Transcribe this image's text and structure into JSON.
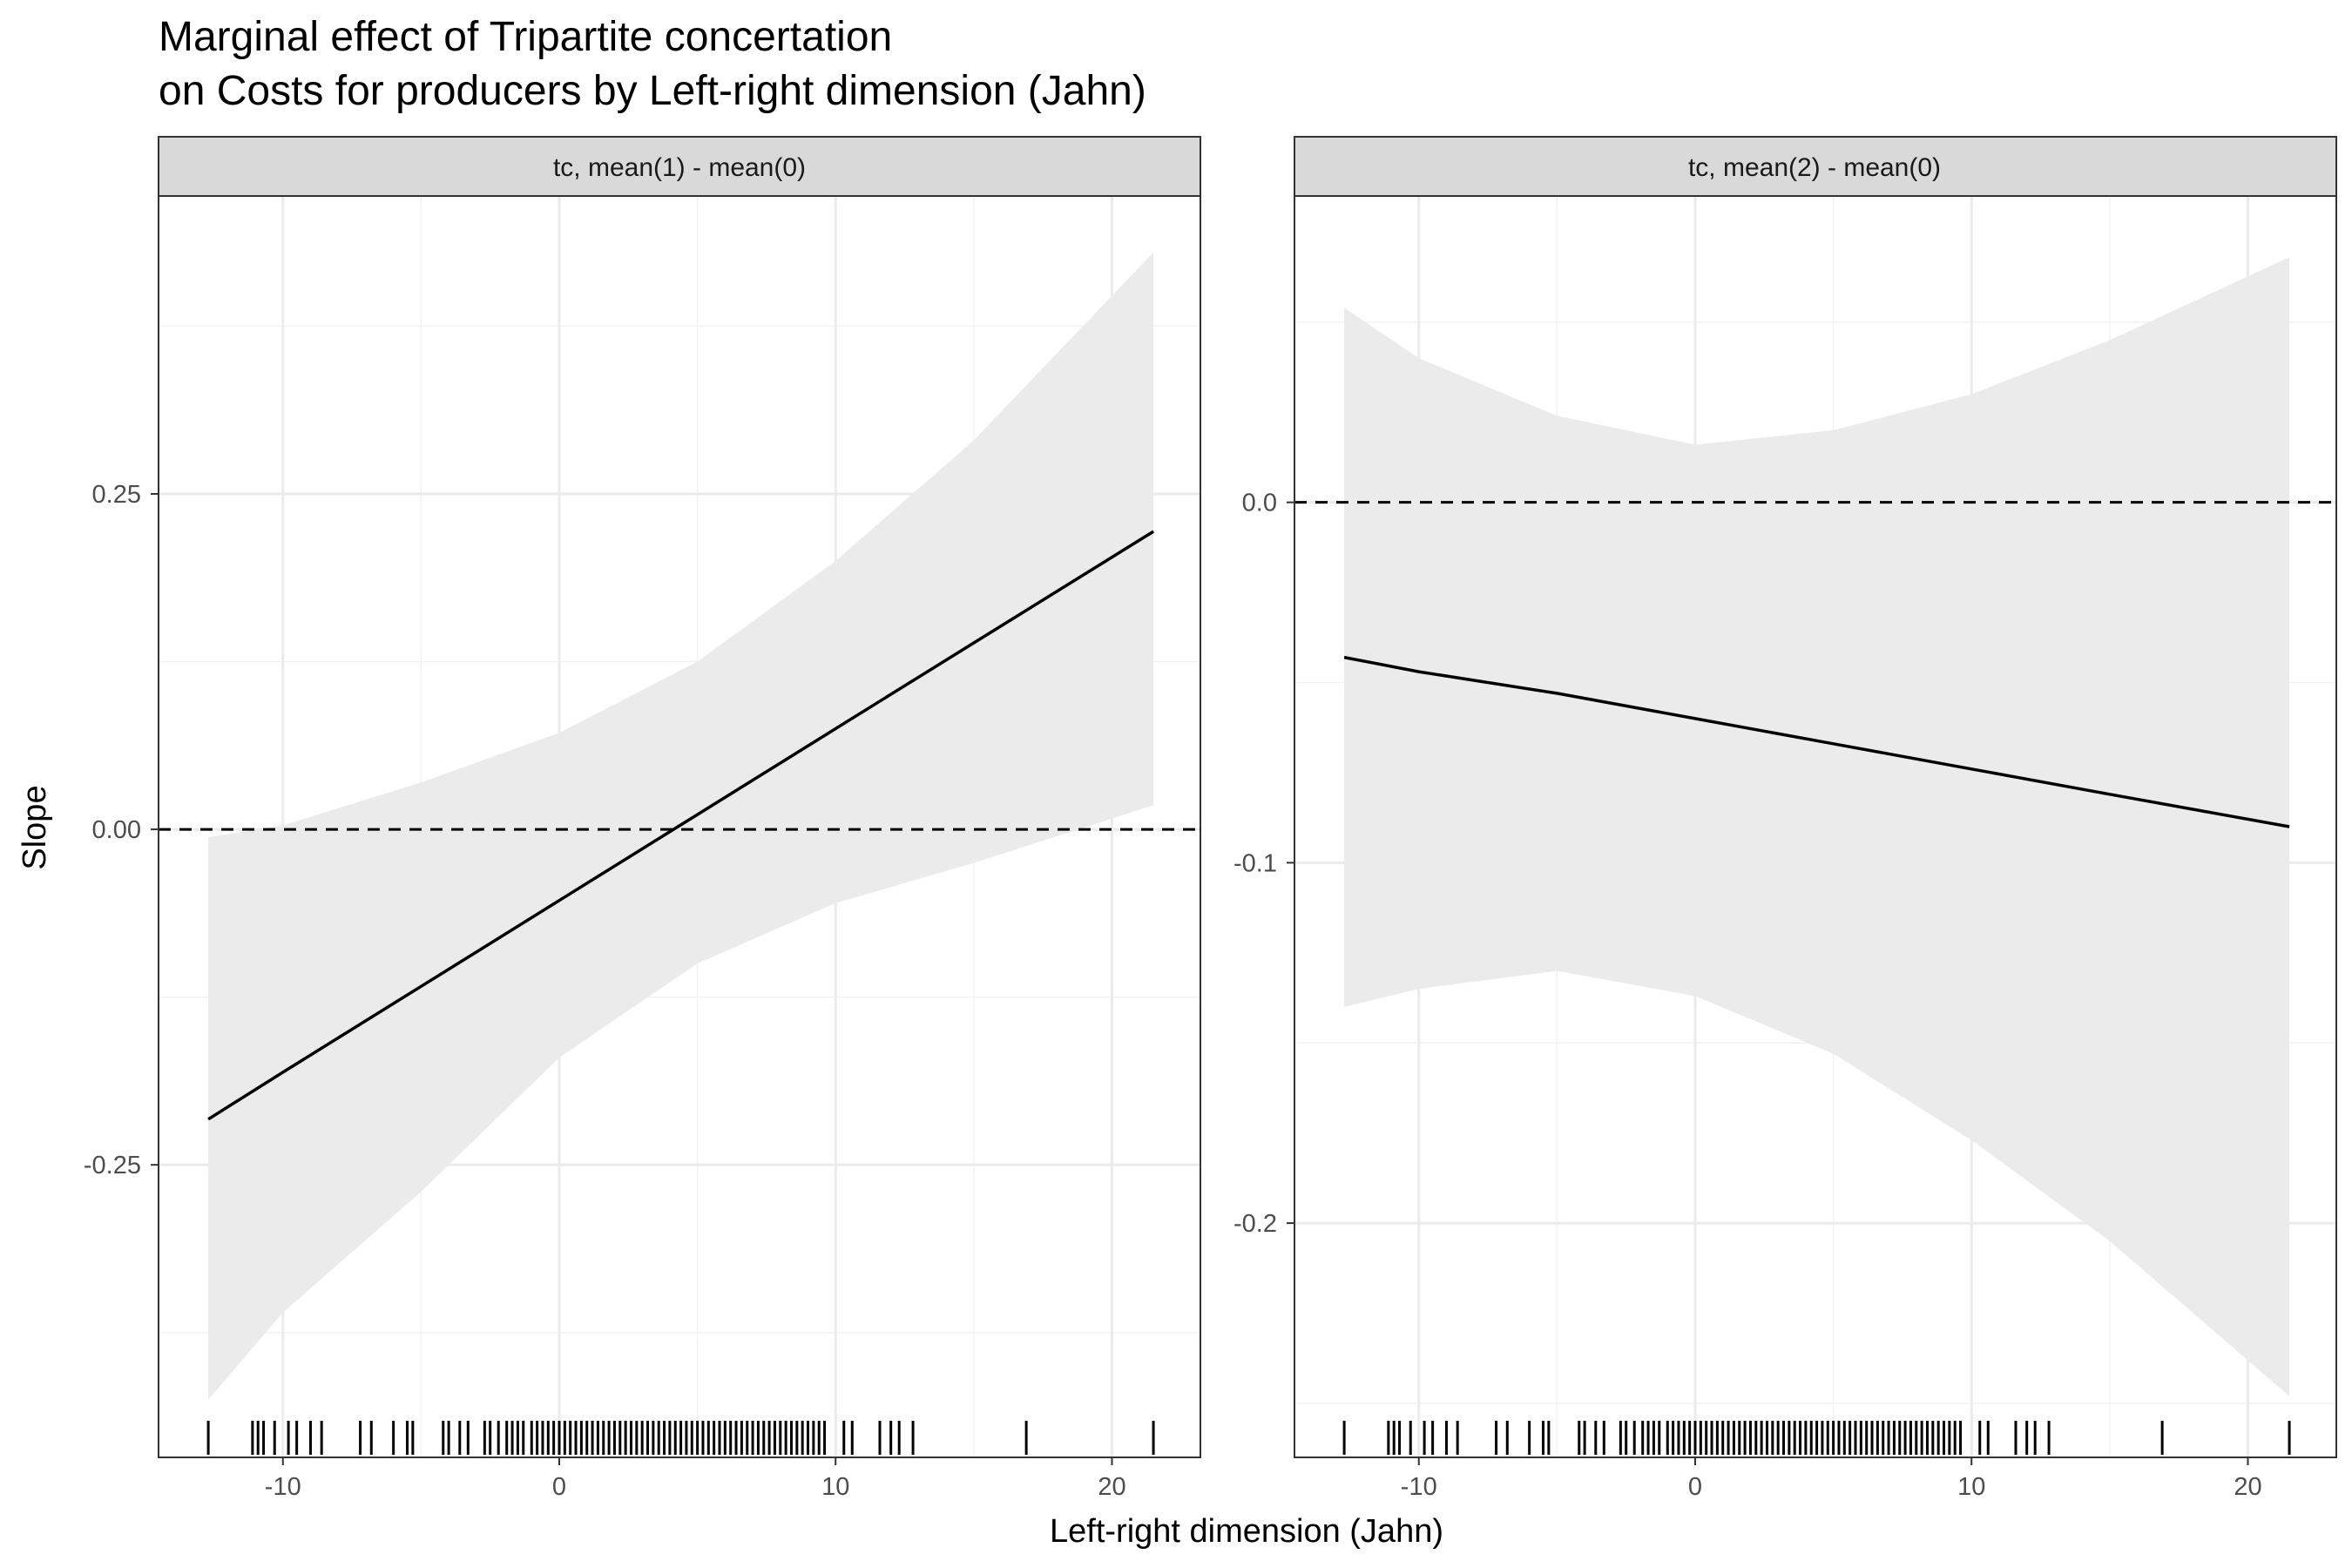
{
  "title_line1": "Marginal effect of Tripartite concertation",
  "title_line2": "on Costs for producers by Left-right dimension (Jahn)",
  "xlabel": "Left-right dimension (Jahn)",
  "ylabel": "Slope",
  "colors": {
    "ribbon": "#ebebeb",
    "line": "#000000",
    "grid_major": "#ebebeb",
    "grid_minor": "#f2f2f2",
    "strip_bg": "#d9d9d9",
    "strip_border": "#333333",
    "panel_border": "#333333"
  },
  "chart_data": [
    {
      "type": "line",
      "panel_label": "tc, mean(1) - mean(0)",
      "x_ticks": [
        -10,
        0,
        10,
        20
      ],
      "x_tick_labels": [
        "-10",
        "0",
        "10",
        "20"
      ],
      "xlim": [
        -14.5,
        23.2
      ],
      "y_ticks": [
        0.25,
        0.0,
        -0.25
      ],
      "y_tick_labels": [
        "0.25",
        "0.00",
        "-0.25"
      ],
      "ylim": [
        -0.468,
        0.472
      ],
      "reference_line": 0,
      "series": [
        {
          "x": [
            -12.7,
            -10,
            -5,
            0,
            5,
            10,
            15,
            21.5
          ],
          "y": [
            -0.216,
            -0.181,
            -0.117,
            -0.053,
            0.011,
            0.075,
            0.139,
            0.222
          ],
          "ci_lower": [
            -0.425,
            -0.36,
            -0.27,
            -0.17,
            -0.1,
            -0.055,
            -0.025,
            0.018
          ],
          "ci_upper": [
            -0.006,
            0.003,
            0.035,
            0.072,
            0.125,
            0.2,
            0.29,
            0.43
          ]
        }
      ],
      "rug_x": [
        -12.7,
        -11.1,
        -10.9,
        -10.7,
        -10.3,
        -9.8,
        -9.5,
        -9.0,
        -8.6,
        -7.2,
        -6.8,
        -6.0,
        -5.5,
        -5.3,
        -4.2,
        -4.0,
        -3.6,
        -3.3,
        -2.7,
        -2.5,
        -2.2,
        -1.9,
        -1.7,
        -1.5,
        -1.3,
        -1.0,
        -0.8,
        -0.6,
        -0.4,
        -0.2,
        0.0,
        0.2,
        0.4,
        0.6,
        0.8,
        1.0,
        1.2,
        1.4,
        1.6,
        1.8,
        2.0,
        2.2,
        2.4,
        2.6,
        2.8,
        3.0,
        3.2,
        3.4,
        3.6,
        3.8,
        4.0,
        4.2,
        4.4,
        4.6,
        4.8,
        5.0,
        5.2,
        5.4,
        5.6,
        5.8,
        6.0,
        6.2,
        6.4,
        6.6,
        6.8,
        7.0,
        7.2,
        7.4,
        7.6,
        7.8,
        8.0,
        8.2,
        8.4,
        8.6,
        8.8,
        9.0,
        9.2,
        9.4,
        9.6,
        10.3,
        10.6,
        11.6,
        12.0,
        12.3,
        12.8,
        16.9,
        21.5
      ]
    },
    {
      "type": "line",
      "panel_label": "tc, mean(2) - mean(0)",
      "x_ticks": [
        -10,
        0,
        10,
        20
      ],
      "x_tick_labels": [
        "-10",
        "0",
        "10",
        "20"
      ],
      "xlim": [
        -14.5,
        23.2
      ],
      "y_ticks": [
        0.0,
        -0.1,
        -0.2
      ],
      "y_tick_labels": [
        "0.0",
        "-0.1",
        "-0.2"
      ],
      "ylim": [
        -0.265,
        0.085
      ],
      "reference_line": 0,
      "series": [
        {
          "x": [
            -12.7,
            -10,
            -5,
            0,
            5,
            10,
            15,
            21.5
          ],
          "y": [
            -0.043,
            -0.047,
            -0.053,
            -0.06,
            -0.067,
            -0.074,
            -0.081,
            -0.09
          ],
          "ci_lower": [
            -0.14,
            -0.135,
            -0.13,
            -0.137,
            -0.153,
            -0.177,
            -0.205,
            -0.248
          ],
          "ci_upper": [
            0.054,
            0.04,
            0.024,
            0.016,
            0.02,
            0.03,
            0.045,
            0.068
          ]
        }
      ],
      "rug_x": [
        -12.7,
        -11.1,
        -10.9,
        -10.7,
        -10.3,
        -9.8,
        -9.5,
        -9.0,
        -8.6,
        -7.2,
        -6.8,
        -6.0,
        -5.5,
        -5.3,
        -4.2,
        -4.0,
        -3.6,
        -3.3,
        -2.7,
        -2.5,
        -2.2,
        -1.9,
        -1.7,
        -1.5,
        -1.3,
        -1.0,
        -0.8,
        -0.6,
        -0.4,
        -0.2,
        0.0,
        0.2,
        0.4,
        0.6,
        0.8,
        1.0,
        1.2,
        1.4,
        1.6,
        1.8,
        2.0,
        2.2,
        2.4,
        2.6,
        2.8,
        3.0,
        3.2,
        3.4,
        3.6,
        3.8,
        4.0,
        4.2,
        4.4,
        4.6,
        4.8,
        5.0,
        5.2,
        5.4,
        5.6,
        5.8,
        6.0,
        6.2,
        6.4,
        6.6,
        6.8,
        7.0,
        7.2,
        7.4,
        7.6,
        7.8,
        8.0,
        8.2,
        8.4,
        8.6,
        8.8,
        9.0,
        9.2,
        9.4,
        9.6,
        10.3,
        10.6,
        11.6,
        12.0,
        12.3,
        12.8,
        16.9,
        21.5
      ]
    }
  ]
}
